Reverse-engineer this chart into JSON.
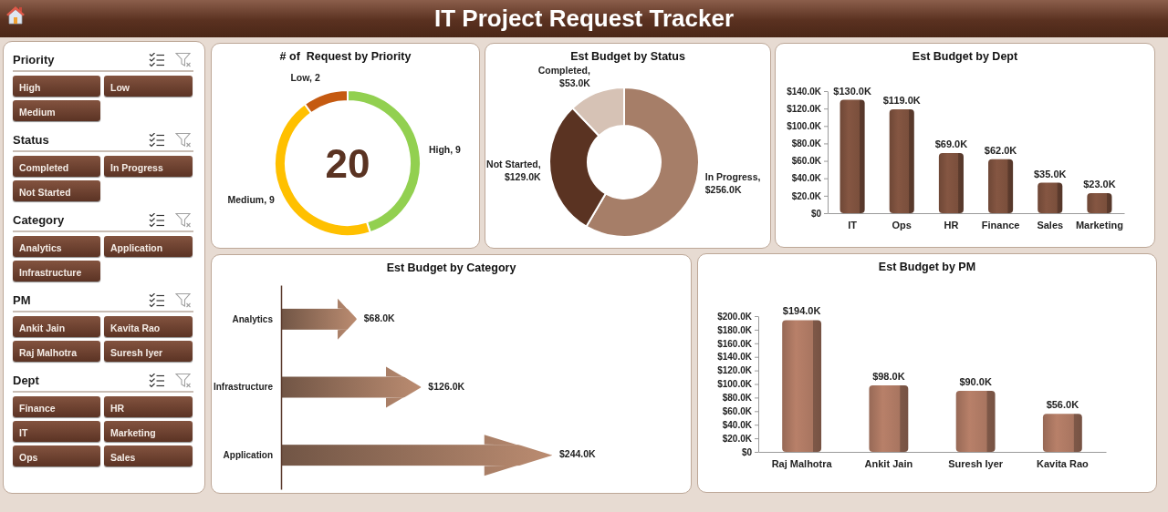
{
  "chart_data": [
    {
      "type": "other",
      "title": "IT Project Request Tracker"
    },
    {
      "type": "other",
      "title": "Priority",
      "categories": [
        "High",
        "Low",
        "Medium"
      ]
    },
    {
      "type": "other",
      "title": "Status",
      "categories": [
        "Completed",
        "In Progress",
        "Not Started"
      ]
    },
    {
      "type": "other",
      "title": "Category",
      "categories": [
        "Analytics",
        "Application",
        "Infrastructure"
      ]
    },
    {
      "type": "other",
      "title": "PM",
      "categories": [
        "Ankit Jain",
        "Kavita Rao",
        "Raj Malhotra",
        "Suresh Iyer"
      ]
    },
    {
      "type": "other",
      "title": "Dept",
      "categories": [
        "Finance",
        "HR",
        "IT",
        "Marketing",
        "Ops",
        "Sales"
      ]
    },
    {
      "type": "donut",
      "title": "# of  Request by Priority",
      "values": [
        9,
        9,
        2
      ],
      "colors": [
        "#92d050",
        "#ffc000",
        "#c55a11"
      ],
      "value_labels": [
        "High, 9",
        "Medium, 9",
        "Low, 2"
      ],
      "annotations": [
        "20"
      ]
    },
    {
      "type": "donut",
      "title": "Est Budget by Status",
      "values": [
        256,
        129,
        53
      ],
      "colors": [
        "#a67e68",
        "#5a3322",
        "#d6c2b5"
      ],
      "value_labels": [
        "In Progress, $256.0K",
        "Not Started, $129.0K",
        "Completed, $53.0K"
      ]
    },
    {
      "type": "bar",
      "title": "Est Budget by Dept",
      "categories": [
        "IT",
        "Ops",
        "HR",
        "Finance",
        "Sales",
        "Marketing"
      ],
      "values": [
        130,
        119,
        69,
        62,
        35,
        23
      ],
      "color": "#7a4f3c",
      "value_labels": [
        "$130.0K",
        "$119.0K",
        "$69.0K",
        "$62.0K",
        "$35.0K",
        "$23.0K"
      ],
      "ylim": [
        0,
        140
      ],
      "yticks": [
        {
          "value": 0,
          "label": "$0"
        },
        {
          "value": 20,
          "label": "$20.0K"
        },
        {
          "value": 40,
          "label": "$40.0K"
        },
        {
          "value": 60,
          "label": "$60.0K"
        },
        {
          "value": 80,
          "label": "$80.0K"
        },
        {
          "value": 100,
          "label": "$100.0K"
        },
        {
          "value": 120,
          "label": "$120.0K"
        },
        {
          "value": 140,
          "label": "$140.0K"
        }
      ]
    },
    {
      "type": "bar",
      "orientation": "horizontal",
      "title": "Est Budget by Category",
      "categories": [
        "Analytics",
        "Infrastructure",
        "Application"
      ],
      "values": [
        68,
        126,
        244
      ],
      "color": "#bb8c71",
      "value_labels": [
        "$68.0K",
        "$126.0K",
        "$244.0K"
      ]
    },
    {
      "type": "bar",
      "title": "Est Budget by PM",
      "categories": [
        "Raj Malhotra",
        "Ankit Jain",
        "Suresh Iyer",
        "Kavita Rao"
      ],
      "values": [
        194,
        98,
        90,
        56
      ],
      "color": "#a87560",
      "value_labels": [
        "$194.0K",
        "$98.0K",
        "$90.0K",
        "$56.0K"
      ],
      "ylim": [
        0,
        200
      ],
      "yticks": [
        {
          "value": 0,
          "label": "$0"
        },
        {
          "value": 20,
          "label": "$20.0K"
        },
        {
          "value": 40,
          "label": "$40.0K"
        },
        {
          "value": 60,
          "label": "$60.0K"
        },
        {
          "value": 80,
          "label": "$80.0K"
        },
        {
          "value": 100,
          "label": "$100.0K"
        },
        {
          "value": 120,
          "label": "$120.0K"
        },
        {
          "value": 140,
          "label": "$140.0K"
        },
        {
          "value": 160,
          "label": "$160.0K"
        },
        {
          "value": 180,
          "label": "$180.0K"
        },
        {
          "value": 200,
          "label": "$200.0K"
        }
      ]
    }
  ]
}
